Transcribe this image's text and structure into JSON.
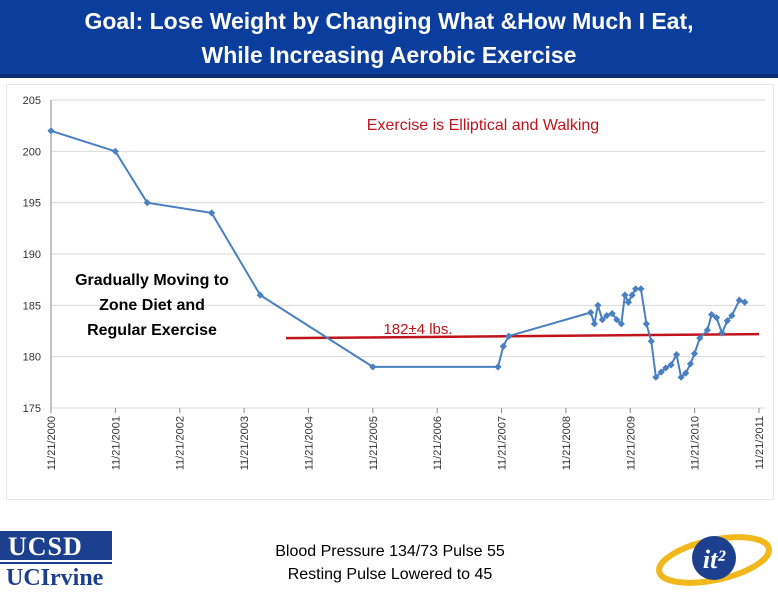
{
  "header": {
    "title_line1": "Goal: Lose Weight by Changing What &How Much I Eat,",
    "title_line2": "While Increasing Aerobic Exercise"
  },
  "chart_data": {
    "type": "line",
    "title": "",
    "xlabel": "",
    "ylabel": "",
    "ylim": [
      175,
      205
    ],
    "yticks": [
      175,
      180,
      185,
      190,
      195,
      200,
      205
    ],
    "grid": true,
    "x_tick_labels": [
      "11/21/2000",
      "11/21/2001",
      "11/21/2002",
      "11/21/2003",
      "11/21/2004",
      "11/21/2005",
      "11/21/2006",
      "11/21/2007",
      "11/21/2008",
      "11/21/2009",
      "11/21/2010",
      "11/21/2011"
    ],
    "series": [
      {
        "color": "#4a7fc1",
        "points": [
          [
            "2000-11-21",
            202
          ],
          [
            "2001-11-21",
            200
          ],
          [
            "2002-05-21",
            195
          ],
          [
            "2003-05-21",
            194
          ],
          [
            "2004-02-21",
            186
          ],
          [
            "2005-11-21",
            179
          ],
          [
            "2007-11-01",
            179
          ],
          [
            "2007-12-01",
            181
          ],
          [
            "2008-01-01",
            182
          ],
          [
            "2009-04-10",
            184.3
          ],
          [
            "2009-05-01",
            183.2
          ],
          [
            "2009-05-21",
            185
          ],
          [
            "2009-06-15",
            183.6
          ],
          [
            "2009-07-10",
            184
          ],
          [
            "2009-08-10",
            184.2
          ],
          [
            "2009-09-05",
            183.6
          ],
          [
            "2009-10-01",
            183.2
          ],
          [
            "2009-10-21",
            186
          ],
          [
            "2009-11-10",
            185.3
          ],
          [
            "2009-12-01",
            186
          ],
          [
            "2009-12-21",
            186.6
          ],
          [
            "2010-01-20",
            186.6
          ],
          [
            "2010-02-20",
            183.2
          ],
          [
            "2010-03-20",
            181.5
          ],
          [
            "2010-04-15",
            178
          ],
          [
            "2010-05-15",
            178.5
          ],
          [
            "2010-06-10",
            178.9
          ],
          [
            "2010-07-10",
            179.2
          ],
          [
            "2010-08-10",
            180.2
          ],
          [
            "2010-09-05",
            178
          ],
          [
            "2010-10-01",
            178.4
          ],
          [
            "2010-10-28",
            179.3
          ],
          [
            "2010-11-20",
            180.3
          ],
          [
            "2010-12-20",
            181.8
          ],
          [
            "2011-02-01",
            182.6
          ],
          [
            "2011-02-25",
            184.1
          ],
          [
            "2011-03-25",
            183.8
          ],
          [
            "2011-04-25",
            182.3
          ],
          [
            "2011-05-25",
            183.5
          ],
          [
            "2011-06-20",
            184
          ],
          [
            "2011-08-01",
            185.5
          ],
          [
            "2011-09-01",
            185.3
          ]
        ]
      }
    ],
    "reference_line": {
      "value": 182,
      "color": "#c0141c"
    },
    "annotations": {
      "exercise": {
        "text": "Exercise is Elliptical and Walking",
        "color": "#c0141c"
      },
      "zone_diet": [
        "Gradually Moving to",
        "Zone Diet and",
        "Regular Exercise"
      ],
      "average": {
        "text": "182±4 lbs.",
        "color": "#c0141c"
      }
    }
  },
  "footer": {
    "line1": "Blood Pressure 134/73 Pulse 55",
    "line2": "Resting Pulse Lowered to 45"
  },
  "logos": {
    "ucsd": "UCSD",
    "uci": "UCIrvine",
    "it2": "it²"
  }
}
